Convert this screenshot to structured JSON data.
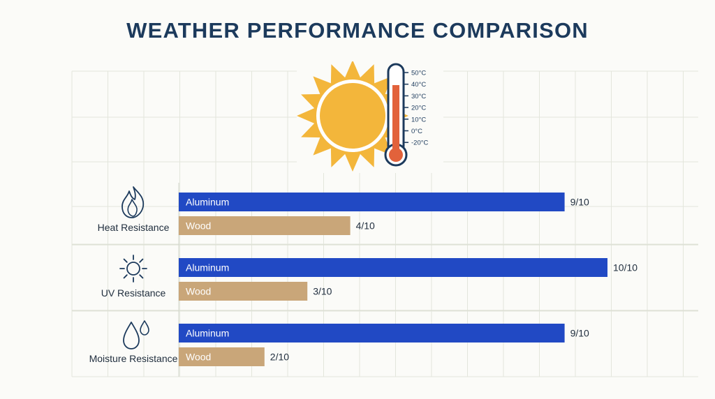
{
  "title": "WEATHER PERFORMANCE COMPARISON",
  "thermometer": {
    "scale_labels": [
      "50°C",
      "40°C",
      "30°C",
      "20°C",
      "10°C",
      "0°C",
      "-20°C"
    ]
  },
  "chart_data": {
    "type": "bar",
    "orientation": "horizontal",
    "title": "WEATHER PERFORMANCE COMPARISON",
    "categories": [
      "Heat Resistance",
      "UV Resistance",
      "Moisture Resistance"
    ],
    "category_icons": [
      "flame-icon",
      "sun-icon",
      "water-drops-icon"
    ],
    "series": [
      {
        "name": "Aluminum",
        "values": [
          9,
          10,
          9
        ],
        "color": "#2149c4"
      },
      {
        "name": "Wood",
        "values": [
          4,
          3,
          2
        ],
        "color": "#c9a679"
      }
    ],
    "value_labels": [
      [
        "9/10",
        "10/10",
        "9/10"
      ],
      [
        "4/10",
        "3/10",
        "2/10"
      ]
    ],
    "xlim": [
      0,
      10
    ],
    "grid": true
  },
  "colors": {
    "title": "#1c3a5c",
    "aluminum": "#2149c4",
    "wood": "#c9a679",
    "sun": "#f3b63b",
    "thermometer_fill": "#e2623b"
  }
}
